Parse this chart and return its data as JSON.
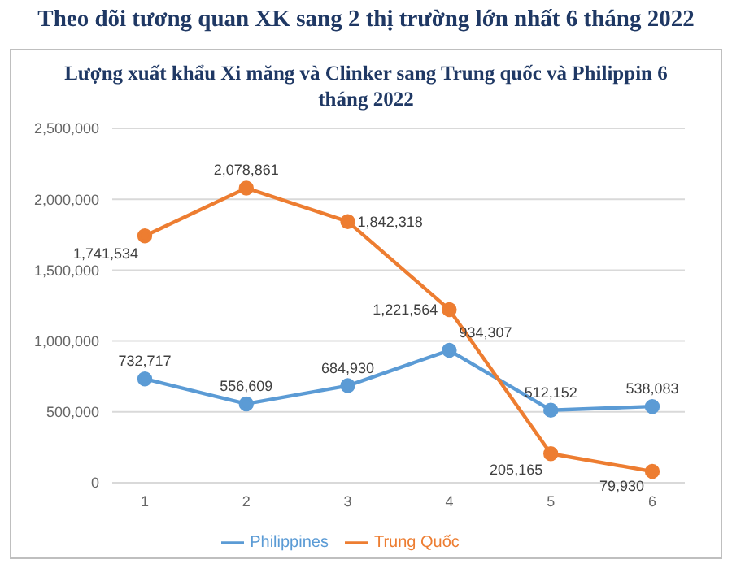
{
  "chart_data": {
    "type": "line",
    "title": "Theo dõi tương quan XK sang 2 thị trường lớn nhất 6 tháng 2022",
    "subtitle": "Lượng xuất khẩu Xi măng và Clinker sang Trung quốc và Philippin 6 tháng 2022",
    "categories": [
      "1",
      "2",
      "3",
      "4",
      "5",
      "6"
    ],
    "series": [
      {
        "name": "Philippines",
        "color": "#5b9bd5",
        "values": [
          732717,
          556609,
          684930,
          934307,
          512152,
          538083
        ],
        "value_labels": [
          "732,717",
          "556,609",
          "684,930",
          "934,307",
          "512,152",
          "538,083"
        ]
      },
      {
        "name": "Trung Quốc",
        "color": "#ed7d31",
        "values": [
          1741534,
          2078861,
          1842318,
          1221564,
          205165,
          79930
        ],
        "value_labels": [
          "1,741,534",
          "2,078,861",
          "1,842,318",
          "1,221,564",
          "205,165",
          "79,930"
        ]
      }
    ],
    "ylim": [
      0,
      2500000
    ],
    "yticks": [
      0,
      {
        "value": 500000,
        "label": "500,000"
      },
      {
        "value": 1000000,
        "label": "1,000,000"
      },
      {
        "value": 1500000,
        "label": "1,500,000"
      },
      {
        "value": 2000000,
        "label": "2,000,000"
      },
      {
        "value": 2500000,
        "label": "2,500,000"
      }
    ],
    "grid": "y",
    "legend": "bottom",
    "marker": "circle",
    "line_style": "solid"
  }
}
